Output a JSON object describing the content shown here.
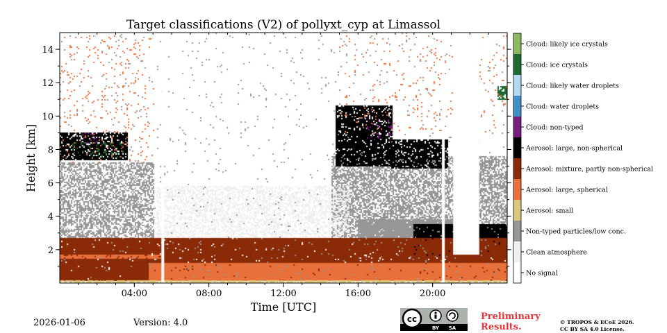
{
  "chart_data": {
    "type": "heatmap",
    "title": "Target classifications (V2) of pollyxt_cyp at Limassol",
    "xlabel": "Time [UTC]",
    "ylabel": "Height [km]",
    "xlim_hours": [
      0,
      24
    ],
    "ylim_km": [
      0,
      15
    ],
    "x_ticks": [
      {
        "hour": 4,
        "label": "04:00"
      },
      {
        "hour": 8,
        "label": "08:00"
      },
      {
        "hour": 12,
        "label": "12:00"
      },
      {
        "hour": 16,
        "label": "16:00"
      },
      {
        "hour": 20,
        "label": "20:00"
      }
    ],
    "y_ticks": [
      {
        "km": 2,
        "label": "2"
      },
      {
        "km": 4,
        "label": "4"
      },
      {
        "km": 6,
        "label": "6"
      },
      {
        "km": 8,
        "label": "8"
      },
      {
        "km": 10,
        "label": "10"
      },
      {
        "km": 12,
        "label": "12"
      },
      {
        "km": 14,
        "label": "14"
      }
    ],
    "classes": [
      {
        "id": 0,
        "name": "No signal",
        "color": "#ffffff"
      },
      {
        "id": 1,
        "name": "Clean atmosphere",
        "color": "#eeeeee"
      },
      {
        "id": 2,
        "name": "Non-typed particles/low conc.",
        "color": "#969696"
      },
      {
        "id": 3,
        "name": "Aerosol: small",
        "color": "#dbc77a"
      },
      {
        "id": 4,
        "name": "Aerosol: large, spherical",
        "color": "#e8703a"
      },
      {
        "id": 5,
        "name": "Aerosol: mixture, partly non-spherical",
        "color": "#8b2a06"
      },
      {
        "id": 6,
        "name": "Aerosol: large, non-spherical",
        "color": "#000000"
      },
      {
        "id": 7,
        "name": "Cloud: non-typed",
        "color": "#7a1c7e"
      },
      {
        "id": 8,
        "name": "Cloud: water droplets",
        "color": "#3f8fc9"
      },
      {
        "id": 9,
        "name": "Cloud: likely water droplets",
        "color": "#b5d8f2"
      },
      {
        "id": 10,
        "name": "Cloud: ice crystals",
        "color": "#1e6a33"
      },
      {
        "id": 11,
        "name": "Cloud: likely ice crystals",
        "color": "#8cb860"
      }
    ],
    "regions": [
      {
        "class": 2,
        "t": [
          0.0,
          5.0
        ],
        "h": [
          2.6,
          7.2
        ],
        "density": 0.55
      },
      {
        "class": 2,
        "t": [
          14.6,
          24.0
        ],
        "h": [
          2.3,
          7.6
        ],
        "density": 0.6
      },
      {
        "class": 2,
        "t": [
          16.0,
          22.0
        ],
        "h": [
          2.0,
          3.8
        ],
        "density": 0.95
      },
      {
        "class": 1,
        "t": [
          5.2,
          15.5
        ],
        "h": [
          2.0,
          5.8
        ],
        "density": 0.45
      },
      {
        "class": 6,
        "t": [
          0.0,
          3.6
        ],
        "h": [
          7.4,
          9.0
        ],
        "density": 0.85
      },
      {
        "class": 6,
        "t": [
          14.8,
          17.8
        ],
        "h": [
          7.0,
          10.6
        ],
        "density": 0.88
      },
      {
        "class": 6,
        "t": [
          17.8,
          20.8
        ],
        "h": [
          6.9,
          8.6
        ],
        "density": 0.85
      },
      {
        "class": 6,
        "t": [
          19.0,
          24.0
        ],
        "h": [
          1.7,
          3.5
        ],
        "density": 0.97
      },
      {
        "class": 10,
        "t": [
          0.6,
          3.4
        ],
        "h": [
          7.6,
          8.4
        ],
        "density": 0.15
      },
      {
        "class": 7,
        "t": [
          1.0,
          2.0
        ],
        "h": [
          8.4,
          9.0
        ],
        "density": 0.18
      },
      {
        "class": 7,
        "t": [
          16.5,
          17.8
        ],
        "h": [
          8.4,
          9.8
        ],
        "density": 0.12
      },
      {
        "class": 7,
        "t": [
          21.0,
          22.5
        ],
        "h": [
          1.4,
          1.7
        ],
        "density": 0.5
      },
      {
        "class": 10,
        "t": [
          23.5,
          24.0
        ],
        "h": [
          11.0,
          11.8
        ],
        "density": 0.7
      },
      {
        "class": 5,
        "t": [
          0.0,
          24.0
        ],
        "h": [
          0.2,
          2.7
        ],
        "density": 0.98
      },
      {
        "class": 4,
        "t": [
          4.8,
          24.0
        ],
        "h": [
          0.15,
          1.2
        ],
        "density": 0.98
      },
      {
        "class": 4,
        "t": [
          0.0,
          5.5
        ],
        "h": [
          1.5,
          1.7
        ],
        "density": 0.9
      },
      {
        "class": 4,
        "t": [
          0.0,
          5.0
        ],
        "h": [
          7.2,
          14.8
        ],
        "density": 0.04
      },
      {
        "class": 4,
        "t": [
          15.0,
          24.0
        ],
        "h": [
          9.0,
          14.8
        ],
        "density": 0.03
      },
      {
        "class": 2,
        "t": [
          0.0,
          24.0
        ],
        "h": [
          0.0,
          15.0
        ],
        "density": 0.015
      },
      {
        "class": 3,
        "t": [
          0.0,
          24.0
        ],
        "h": [
          0.0,
          0.15
        ],
        "density": 0.8
      }
    ],
    "gaps": [
      {
        "t": [
          5.45,
          5.6
        ]
      },
      {
        "t": [
          20.5,
          20.65
        ]
      },
      {
        "t": [
          21.1,
          22.5
        ],
        "h": [
          1.7,
          15.0
        ]
      }
    ]
  },
  "footer": {
    "date": "2026-01-06",
    "version": "Version: 4.0",
    "preliminary_line1": "Preliminary",
    "preliminary_line2": "Results.",
    "copyright_line1": "© TROPOS & ECoE 2026.",
    "copyright_line2": "CC BY SA 4.0 License.",
    "cc_by": "BY",
    "cc_sa": "SA"
  }
}
